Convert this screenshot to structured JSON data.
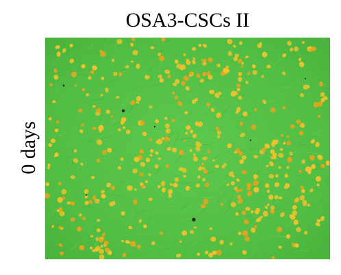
{
  "figure": {
    "title": "OSA3-CSCs II",
    "side_label": "0 days"
  },
  "colors": {
    "background_green": "#56c246",
    "cell_yellow": "#f2c22c",
    "cell_orange": "#e8a41c",
    "scale_bar": "#c8321e",
    "debris_dark": "#1e2a1a"
  }
}
